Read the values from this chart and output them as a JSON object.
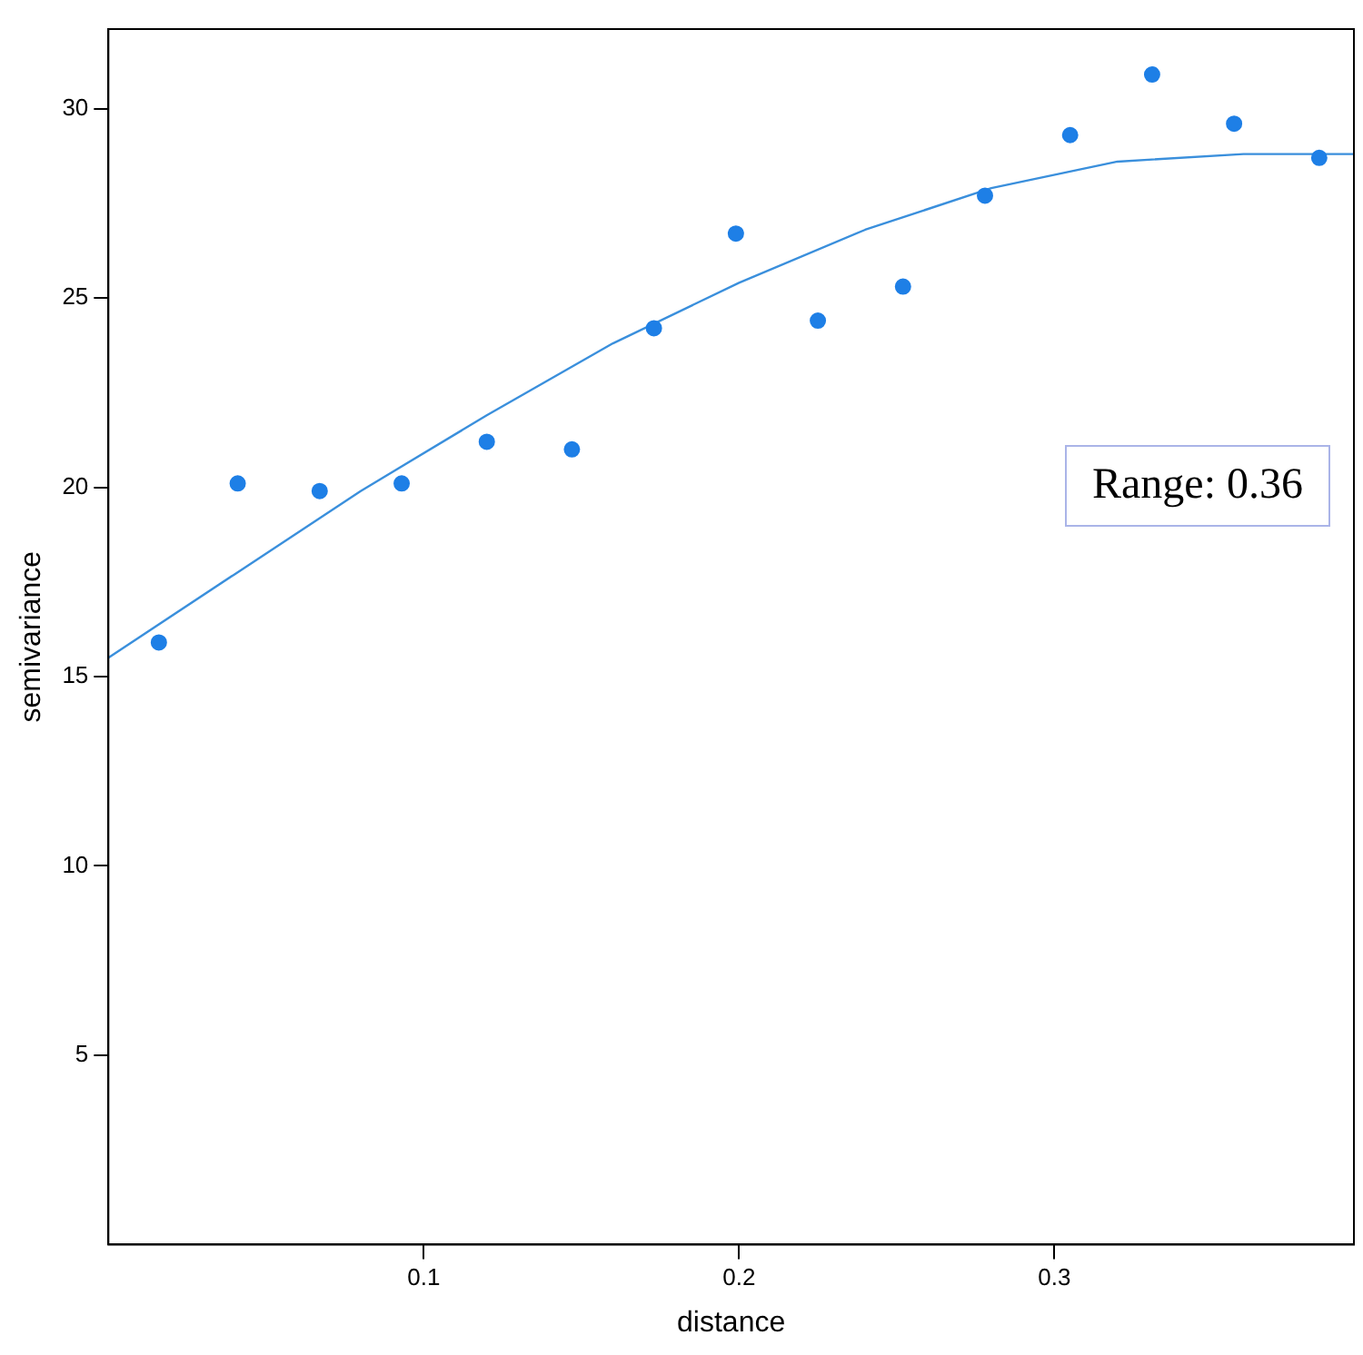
{
  "chart_data": {
    "type": "scatter",
    "xlabel": "distance",
    "ylabel": "semivariance",
    "xlim": [
      0,
      0.395
    ],
    "ylim": [
      0,
      32.1
    ],
    "xticks": [
      0.1,
      0.2,
      0.3
    ],
    "yticks": [
      5,
      10,
      15,
      20,
      25,
      30
    ],
    "grid": false,
    "legend": false,
    "marker": "circle",
    "series": [
      {
        "color": "#1e7fe6",
        "x": [
          0.016,
          0.041,
          0.067,
          0.093,
          0.12,
          0.147,
          0.173,
          0.199,
          0.225,
          0.252,
          0.278,
          0.305,
          0.331,
          0.357,
          0.384
        ],
        "values": [
          15.9,
          20.1,
          19.9,
          20.1,
          21.2,
          21.0,
          24.2,
          26.7,
          24.4,
          25.3,
          27.7,
          29.3,
          30.9,
          29.6,
          28.7
        ]
      },
      {
        "type": "line",
        "color": "#3a8fdc",
        "marker": "none",
        "x": [
          0,
          0.04,
          0.08,
          0.12,
          0.16,
          0.2,
          0.24,
          0.28,
          0.32,
          0.36,
          0.395
        ],
        "values": [
          15.5,
          17.7,
          19.9,
          21.9,
          23.8,
          25.4,
          26.8,
          27.9,
          28.6,
          28.8,
          28.8
        ]
      }
    ],
    "annotations": [
      "Range: 0.36"
    ]
  }
}
